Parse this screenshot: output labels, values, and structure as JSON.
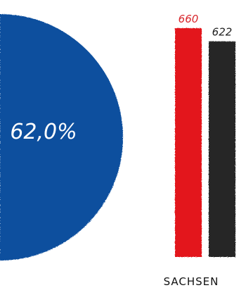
{
  "chart_data": [
    {
      "type": "pie",
      "slices": [
        {
          "label": "62,0%",
          "value": 62.0
        }
      ],
      "colors": {
        "slice": "#0d4f9e",
        "label": "#ffffff"
      }
    },
    {
      "type": "bar",
      "categories": [
        "SACHSEN"
      ],
      "series": [
        {
          "values": [
            660
          ],
          "color": "#e3161c",
          "label_color": "#d8262c"
        },
        {
          "values": [
            622
          ],
          "color": "#262626",
          "label_color": "#222222"
        }
      ],
      "data_labels": [
        "660",
        "622"
      ],
      "ylim": [
        0,
        660
      ]
    }
  ]
}
